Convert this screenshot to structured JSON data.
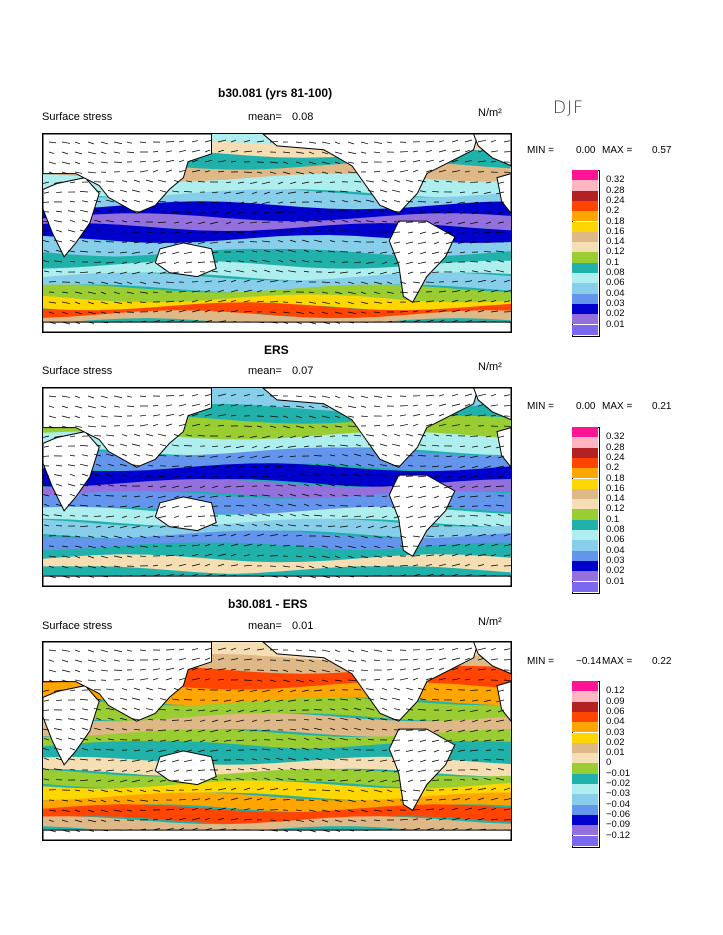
{
  "season": "DJF",
  "panels": [
    {
      "title": "b30.081 (yrs 81-100)",
      "variable": "Surface stress",
      "mean_label": "mean=",
      "mean_value": "0.08",
      "units": "N/m²",
      "min_label": "MIN =",
      "min_value": "0.00",
      "max_label": "MAX =",
      "max_value": "0.57",
      "palette": "abs",
      "legend_values": [
        "0.32",
        "0.28",
        "0.24",
        "0.2",
        "0.18",
        "0.16",
        "0.14",
        "0.12",
        "0.1",
        "0.08",
        "0.06",
        "0.04",
        "0.03",
        "0.02",
        "0.01"
      ]
    },
    {
      "title": "ERS",
      "variable": "Surface stress",
      "mean_label": "mean=",
      "mean_value": "0.07",
      "units": "N/m²",
      "min_label": "MIN =",
      "min_value": "0.00",
      "max_label": "MAX =",
      "max_value": "0.21",
      "palette": "abs",
      "legend_values": [
        "0.32",
        "0.28",
        "0.24",
        "0.2",
        "0.18",
        "0.16",
        "0.14",
        "0.12",
        "0.1",
        "0.08",
        "0.06",
        "0.04",
        "0.03",
        "0.02",
        "0.01"
      ]
    },
    {
      "title": "b30.081 - ERS",
      "variable": "Surface stress",
      "mean_label": "mean=",
      "mean_value": "0.01",
      "units": "N/m²",
      "min_label": "MIN =",
      "min_value": "−0.14",
      "max_label": "MAX =",
      "max_value": "0.22",
      "palette": "diff",
      "legend_values": [
        "0.12",
        "0.09",
        "0.06",
        "0.04",
        "0.03",
        "0.02",
        "0.01",
        "0",
        "−0.01",
        "−0.02",
        "−0.03",
        "−0.04",
        "−0.06",
        "−0.09",
        "−0.12"
      ]
    }
  ],
  "palettes": {
    "abs": [
      "#ff1493",
      "#ffb6c1",
      "#b22222",
      "#ff4500",
      "#ffa500",
      "#ffd700",
      "#deb887",
      "#f5deb3",
      "#9acd32",
      "#20b2aa",
      "#afeeee",
      "#87ceeb",
      "#6495ed",
      "#0000cd",
      "#9370db",
      "#7b68ee"
    ],
    "diff": [
      "#ff1493",
      "#ffb6c1",
      "#b22222",
      "#ff4500",
      "#ffa500",
      "#ffd700",
      "#deb887",
      "#f5deb3",
      "#9acd32",
      "#20b2aa",
      "#afeeee",
      "#87ceeb",
      "#6495ed",
      "#0000cd",
      "#9370db",
      "#7b68ee"
    ]
  }
}
